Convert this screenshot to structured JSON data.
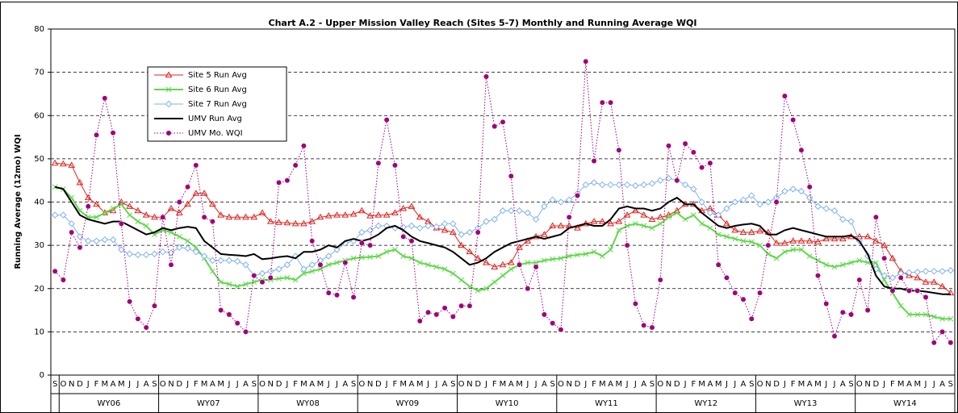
{
  "chart_data": {
    "type": "line",
    "title": "Chart A.2 - Upper Mission Valley Reach (Sites 5-7) Monthly and Running Average WQI",
    "y_label": "Running Average (12mo) WQI",
    "categories": [
      "S",
      "O",
      "N",
      "D",
      "J",
      "F",
      "M",
      "A",
      "M",
      "J",
      "J",
      "A",
      "S",
      "O",
      "N",
      "D",
      "J",
      "F",
      "M",
      "A",
      "M",
      "J",
      "J",
      "A",
      "S",
      "O",
      "N",
      "D",
      "J",
      "F",
      "M",
      "A",
      "M",
      "J",
      "J",
      "A",
      "S",
      "O",
      "N",
      "D",
      "J",
      "F",
      "M",
      "A",
      "M",
      "J",
      "J",
      "A",
      "S",
      "O",
      "N",
      "D",
      "J",
      "F",
      "M",
      "A",
      "M",
      "J",
      "J",
      "A",
      "S",
      "O",
      "N",
      "D",
      "J",
      "F",
      "M",
      "A",
      "M",
      "J",
      "J",
      "A",
      "S",
      "O",
      "N",
      "D",
      "J",
      "F",
      "M",
      "A",
      "M",
      "J",
      "J",
      "A",
      "S",
      "O",
      "N",
      "D",
      "J",
      "F",
      "M",
      "A",
      "M",
      "J",
      "J",
      "A",
      "S",
      "O",
      "N",
      "D",
      "J",
      "F",
      "M",
      "A",
      "M",
      "J",
      "J",
      "A",
      "S"
    ],
    "groups": [
      "WY06",
      "WY07",
      "WY08",
      "WY09",
      "WY10",
      "WY11",
      "WY12",
      "WY13",
      "WY14"
    ],
    "ylim": [
      0,
      80
    ],
    "yticks": [
      0,
      10,
      20,
      30,
      40,
      50,
      60,
      70,
      80
    ],
    "grid": true,
    "series": [
      {
        "name": "Site 5 Run Avg",
        "color": "#e0201b",
        "marker": "triangle",
        "line": "solid",
        "width": 1,
        "values": [
          49,
          48.8,
          48.5,
          44.5,
          41,
          39.5,
          37.5,
          38,
          40,
          39,
          38,
          37,
          36.5,
          36.5,
          38.5,
          37.5,
          39.5,
          42,
          42,
          39.5,
          37,
          36.5,
          36.5,
          36.5,
          36.5,
          37.5,
          35.5,
          35.3,
          35.2,
          35,
          35,
          35.5,
          36.5,
          36.8,
          37,
          37,
          37.2,
          38,
          36.8,
          37,
          37,
          37.5,
          38.5,
          39,
          36.5,
          35.5,
          34,
          33.5,
          33,
          30,
          28.5,
          27,
          26,
          25,
          25.5,
          26,
          29.5,
          31,
          32,
          32.5,
          34.5,
          34.5,
          34.5,
          34,
          35,
          35.5,
          35.5,
          35,
          35.5,
          37,
          38,
          37,
          36,
          36.5,
          37,
          38,
          39.5,
          39.5,
          38,
          38.5,
          37,
          35,
          33.5,
          33,
          33,
          33.3,
          33,
          30.5,
          30.5,
          31,
          31,
          31,
          30.8,
          31.5,
          31.5,
          31.5,
          32,
          32,
          32,
          31,
          30,
          27,
          24,
          23,
          22.5,
          21.5,
          21.5,
          20.5,
          19
        ]
      },
      {
        "name": "Site 6 Run Avg",
        "color": "#5fd94a",
        "marker": "cross",
        "line": "solid",
        "width": 2,
        "values": [
          43.5,
          43,
          41,
          38,
          36.5,
          36.5,
          37.5,
          38.5,
          39.5,
          37,
          35.5,
          34.5,
          32.5,
          33.5,
          33,
          32,
          31,
          29.5,
          27,
          24,
          21.5,
          21,
          20.5,
          21,
          21.5,
          22,
          22,
          22.3,
          22.5,
          22,
          23.5,
          24,
          24.5,
          25.5,
          26,
          26.5,
          27,
          27.2,
          27.3,
          27.5,
          28.5,
          29,
          27.5,
          27,
          26,
          25.5,
          25,
          24.5,
          23.5,
          22,
          20.5,
          19.5,
          20,
          21.5,
          23,
          24.5,
          25.5,
          26,
          26,
          26.5,
          26.8,
          27,
          27.5,
          27.8,
          28,
          28.5,
          27.5,
          29,
          33.5,
          34.5,
          35,
          34.5,
          34,
          35,
          36.5,
          37.5,
          36,
          37,
          35,
          34,
          32.5,
          32,
          31.5,
          31,
          30.8,
          30,
          28,
          27,
          28.5,
          29,
          29,
          27.5,
          26.5,
          25.5,
          25,
          25.5,
          26,
          26.5,
          26,
          26,
          22,
          19,
          16,
          14,
          14,
          14,
          13.5,
          13,
          13
        ]
      },
      {
        "name": "Site 7 Run Avg",
        "color": "#7fb2f0",
        "marker": "diamond",
        "line": "solid",
        "width": 1,
        "values": [
          37,
          37,
          35,
          32,
          31,
          31,
          31.3,
          31.3,
          29,
          28,
          27.8,
          27.8,
          28,
          28.5,
          28.3,
          29.5,
          29.3,
          28.5,
          27.5,
          26.5,
          26.5,
          26.5,
          26.3,
          25.5,
          23,
          23.5,
          24,
          24.5,
          25.5,
          27.5,
          24.5,
          25.5,
          26.5,
          27.5,
          29,
          30.5,
          31,
          33,
          33.5,
          34.5,
          34.5,
          34,
          34.2,
          34.5,
          34,
          34.5,
          34.3,
          35,
          35,
          32.5,
          33,
          34,
          35.5,
          36,
          38,
          38,
          38,
          37.5,
          36,
          39,
          40.5,
          40,
          40.5,
          42,
          44,
          44.5,
          44,
          44,
          44,
          44,
          43.8,
          44,
          44.3,
          45,
          45.5,
          45,
          44,
          43,
          40,
          37.5,
          37,
          38.5,
          40,
          40.5,
          41.5,
          39.5,
          40,
          41,
          42.5,
          43,
          42.5,
          41,
          39,
          38.5,
          38,
          36,
          35.5,
          31,
          27.5,
          24.5,
          23,
          22.5,
          23.5,
          23.7,
          23.8,
          24,
          24,
          24,
          24.2
        ]
      },
      {
        "name": "UMV Run Avg",
        "color": "#000000",
        "marker": "none",
        "line": "solid",
        "width": 2,
        "values": [
          43.5,
          43,
          40,
          37,
          36,
          35.5,
          35,
          35.5,
          35.5,
          34.5,
          33.5,
          32.5,
          33,
          34,
          33.5,
          34,
          34.3,
          34,
          31,
          29.5,
          28,
          27.8,
          27.7,
          27.5,
          28,
          26.8,
          27,
          27.3,
          27.5,
          27,
          28.5,
          28.5,
          29,
          30,
          29.5,
          31,
          31.5,
          31,
          31.5,
          32.5,
          34,
          34.5,
          33.5,
          32,
          31,
          30.5,
          30,
          29.5,
          28.5,
          27,
          25.5,
          26,
          27,
          28.5,
          29.5,
          30.5,
          31,
          31.5,
          32,
          31.5,
          32,
          32.5,
          34,
          34.5,
          35,
          34.5,
          34.5,
          36,
          38.5,
          39,
          38.5,
          38.5,
          38,
          38.5,
          40,
          41,
          39.5,
          39.5,
          37.5,
          36,
          34.5,
          34,
          34.5,
          34.8,
          35,
          34.5,
          32.5,
          32.5,
          33.5,
          34,
          33.5,
          33,
          32.5,
          32,
          32,
          32,
          32.3,
          31,
          28,
          23,
          20.5,
          20,
          20,
          19.5,
          19.5,
          19.3,
          19,
          18.7,
          18.7
        ]
      },
      {
        "name": "UMV Mo. WQI",
        "color": "#a0007a",
        "marker": "circle",
        "line": "dotted",
        "width": 1,
        "values": [
          24,
          22,
          33,
          29.5,
          39,
          55.5,
          64,
          56,
          35,
          17,
          13,
          11,
          16,
          36.5,
          25.5,
          40,
          43.5,
          48.5,
          36.5,
          35.5,
          15,
          14,
          12,
          10,
          23,
          21.5,
          22.5,
          44.5,
          45,
          48.5,
          53,
          31,
          25.5,
          19,
          18.5,
          26,
          18,
          30.5,
          30,
          49,
          59,
          48.5,
          32,
          31,
          12.5,
          14.5,
          14,
          15.5,
          13.5,
          16,
          16,
          33,
          69,
          57.5,
          58.5,
          46,
          25.5,
          20,
          25,
          14,
          12,
          10.5,
          36.5,
          41.5,
          72.5,
          49.5,
          63,
          63,
          52,
          30,
          16.5,
          11.5,
          11,
          22,
          53,
          45,
          53.5,
          51.5,
          48,
          49,
          25.5,
          22.5,
          19,
          17.5,
          13,
          19,
          30,
          40,
          64.5,
          59,
          52,
          43.5,
          23,
          16.5,
          9,
          14.5,
          14,
          22,
          15,
          36.5,
          27,
          19.5,
          22.5,
          19.5,
          19.5,
          18,
          7.5,
          10,
          7.5
        ]
      }
    ]
  }
}
